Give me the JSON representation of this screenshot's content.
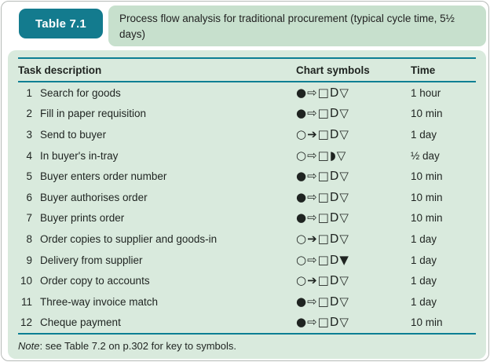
{
  "header": {
    "badge_label": "Table 7.1",
    "title": "Process flow analysis for traditional procurement (typical cycle time, 5½ days)"
  },
  "table": {
    "columns": {
      "task": "Task description",
      "symbols": "Chart symbols",
      "time": "Time"
    },
    "rows": [
      {
        "num": "1",
        "task": "Search for goods",
        "symbols": "●⇨□D▽",
        "time": "1 hour"
      },
      {
        "num": "2",
        "task": "Fill in paper requisition",
        "symbols": "●⇨□D▽",
        "time": "10 min"
      },
      {
        "num": "3",
        "task": "Send to buyer",
        "symbols": "○➔□D▽",
        "time": "1 day"
      },
      {
        "num": "4",
        "task": "In buyer's in-tray",
        "symbols": "○⇨□◗▽",
        "time": "½ day"
      },
      {
        "num": "5",
        "task": "Buyer enters order number",
        "symbols": "●⇨□D▽",
        "time": "10 min"
      },
      {
        "num": "6",
        "task": "Buyer authorises order",
        "symbols": "●⇨□D▽",
        "time": "10 min"
      },
      {
        "num": "7",
        "task": "Buyer prints order",
        "symbols": "●⇨□D▽",
        "time": "10 min"
      },
      {
        "num": "8",
        "task": "Order copies to supplier and goods-in",
        "symbols": "○➔□D▽",
        "time": "1 day"
      },
      {
        "num": "9",
        "task": "Delivery from supplier",
        "symbols": "○⇨□D▼",
        "time": "1 day"
      },
      {
        "num": "10",
        "task": "Order copy to accounts",
        "symbols": "○➔□D▽",
        "time": "1 day"
      },
      {
        "num": "11",
        "task": "Three-way invoice match",
        "symbols": "●⇨□D▽",
        "time": "1 day"
      },
      {
        "num": "12",
        "task": "Cheque payment",
        "symbols": "●⇨□D▽",
        "time": "10 min"
      }
    ],
    "note_label": "Note",
    "note_rest": ": see Table 7.2 on p.302 for key to symbols."
  },
  "colors": {
    "teal_badge": "#137b8e",
    "teal_rule": "#0d7f94",
    "title_box_green": "#c7e0cd",
    "table_box_green": "#d9eadd",
    "text": "#1f2421"
  }
}
